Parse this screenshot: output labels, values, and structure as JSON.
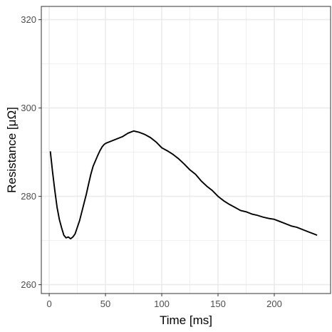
{
  "chart_data": {
    "type": "line",
    "title": "",
    "xlabel": "Time [ms]",
    "ylabel": "Resistance  [μΩ]",
    "xlim": [
      -7,
      250
    ],
    "ylim": [
      258,
      323
    ],
    "x_ticks": [
      0,
      50,
      100,
      150,
      200
    ],
    "y_ticks": [
      260,
      280,
      300,
      320
    ],
    "x_tick_labels": [
      "0",
      "50",
      "100",
      "150",
      "200"
    ],
    "y_tick_labels": [
      "260",
      "280",
      "300",
      "320"
    ],
    "grid": true,
    "legend": "none",
    "series": [
      {
        "x": [
          1,
          3,
          5,
          7,
          9,
          11,
          13,
          15,
          17,
          19,
          21,
          23,
          25,
          27,
          29,
          31,
          33,
          35,
          37,
          39,
          41,
          43,
          45,
          47,
          49,
          51,
          55,
          60,
          65,
          70,
          75,
          80,
          85,
          90,
          95,
          100,
          105,
          110,
          115,
          120,
          125,
          130,
          135,
          140,
          145,
          150,
          155,
          160,
          165,
          170,
          175,
          180,
          185,
          190,
          195,
          200,
          205,
          210,
          215,
          220,
          225,
          230,
          235,
          238
        ],
        "y": [
          290.2,
          285.5,
          281.3,
          277.5,
          274.8,
          272.9,
          271.2,
          270.6,
          270.8,
          270.4,
          270.8,
          271.5,
          273,
          274.5,
          276.5,
          278.5,
          280.5,
          282.8,
          285,
          286.8,
          288,
          289.2,
          290.3,
          291.2,
          291.8,
          292.1,
          292.5,
          293,
          293.5,
          294.3,
          294.8,
          294.5,
          294,
          293.3,
          292.3,
          291,
          290.3,
          289.5,
          288.5,
          287.3,
          286,
          285,
          283.5,
          282.3,
          281.3,
          280,
          279,
          278.2,
          277.5,
          276.8,
          276.5,
          276,
          275.7,
          275.3,
          275,
          274.8,
          274.3,
          273.8,
          273.3,
          273,
          272.5,
          272,
          271.5,
          271.2
        ]
      }
    ],
    "line_color": "#000000",
    "grid_color": "#ebebeb",
    "panel_border_color": "#333333"
  }
}
